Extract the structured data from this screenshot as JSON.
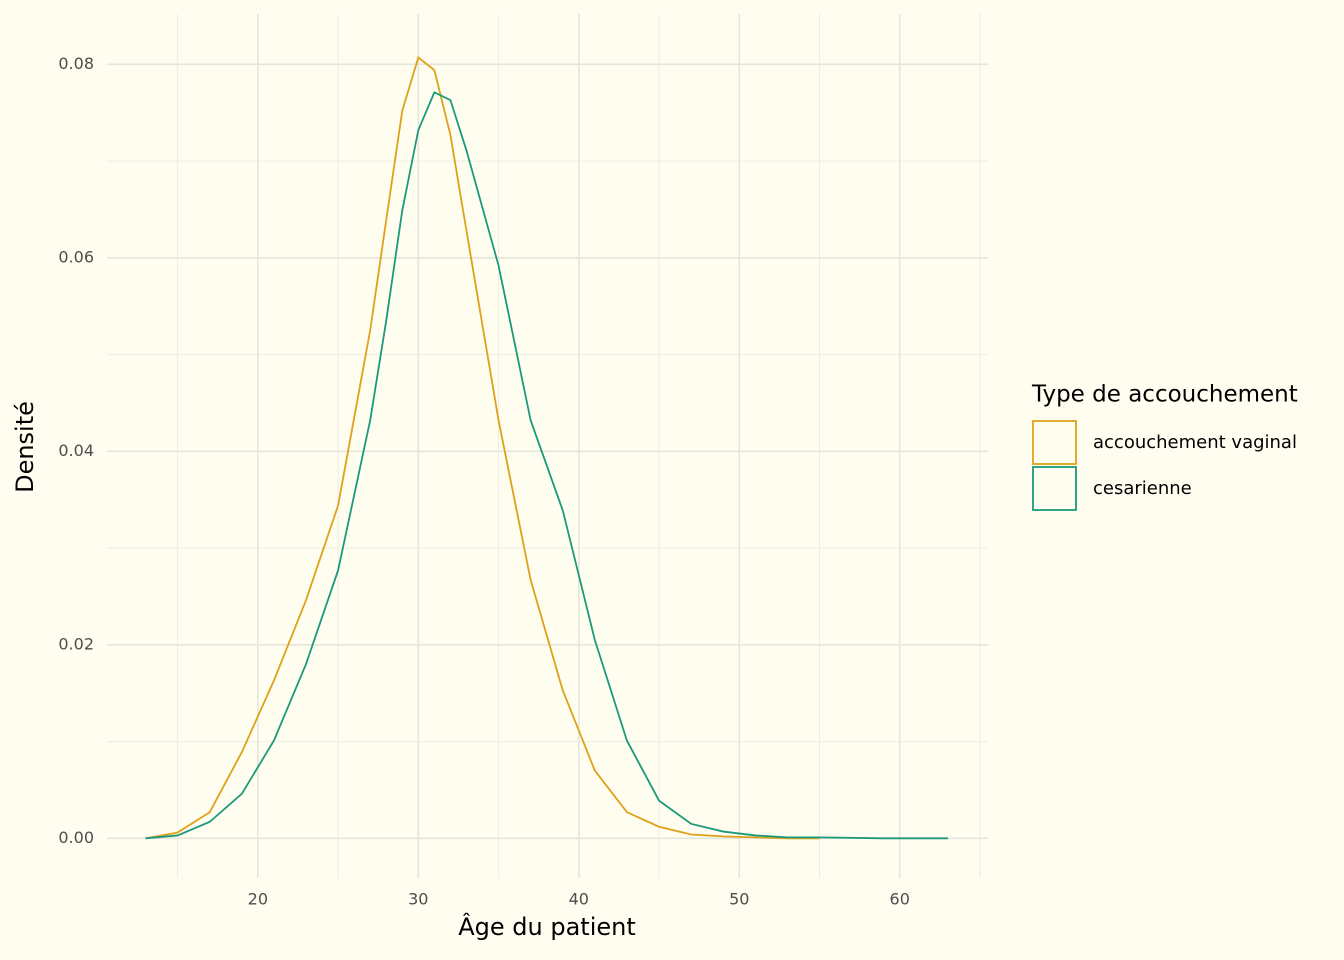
{
  "chart_data": {
    "type": "line",
    "x_label": "Âge du patient",
    "y_label": "Densité",
    "legend_title": "Type de accouchement",
    "legend": "right",
    "grid": true,
    "x": [
      13,
      15,
      17,
      19,
      21,
      23,
      25,
      27,
      28,
      29,
      30,
      31,
      32,
      33,
      35,
      37,
      39,
      41,
      43,
      45,
      47,
      49,
      51,
      53,
      55,
      59,
      63
    ],
    "series": [
      {
        "name": "accouchement vaginal",
        "color": "#dea21a",
        "values": [
          0.0,
          0.0006,
          0.0027,
          0.0089,
          0.0163,
          0.0246,
          0.0344,
          0.0525,
          0.0639,
          0.0752,
          0.0807,
          0.0794,
          0.0727,
          0.0628,
          0.0432,
          0.0267,
          0.0153,
          0.007,
          0.0027,
          0.0012,
          0.0004,
          0.0002,
          0.0001,
          0.0,
          0.0,
          null,
          null
        ]
      },
      {
        "name": "cesarienne",
        "color": "#1b9a7a",
        "values": [
          0.0,
          0.0003,
          0.0017,
          0.0046,
          0.0101,
          0.018,
          0.0277,
          0.0432,
          0.0535,
          0.0649,
          0.0732,
          0.0771,
          0.0763,
          0.0711,
          0.0592,
          0.0432,
          0.0339,
          0.0205,
          0.0101,
          0.0039,
          0.0015,
          0.0007,
          0.0003,
          0.0001,
          0.0001,
          0.0,
          0.0
        ]
      }
    ],
    "xlim": [
      10.6,
      65.5
    ],
    "ylim": [
      -0.0041,
      0.0852
    ],
    "xticks": [
      20,
      30,
      40,
      50,
      60
    ],
    "yticks": [
      {
        "value": 0,
        "label": "0.00"
      },
      {
        "value": 0.02,
        "label": "0.02"
      },
      {
        "value": 0.04,
        "label": "0.04"
      },
      {
        "value": 0.06,
        "label": "0.06"
      },
      {
        "value": 0.08,
        "label": "0.08"
      }
    ]
  }
}
